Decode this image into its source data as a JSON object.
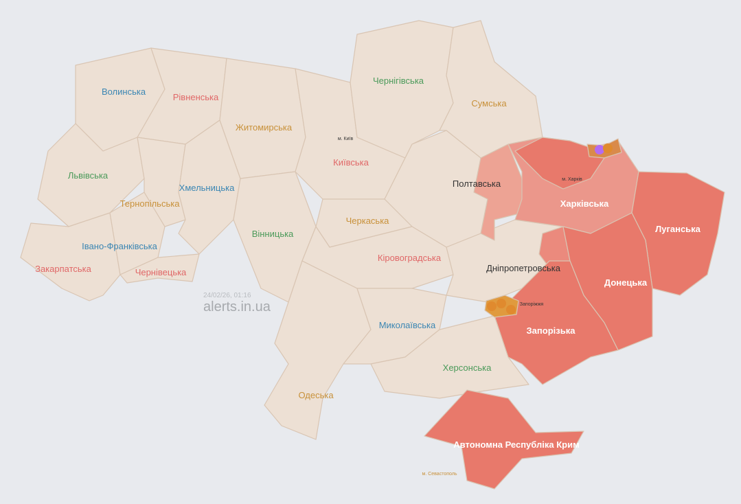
{
  "watermark": {
    "timestamp": "24/02/26, 01:16",
    "site": "alerts.in.ua"
  },
  "colors": {
    "background": "#e8eaee",
    "region_calm": "#ede0d4",
    "region_alert": "#e8796b",
    "region_alert_light": "#eb978b",
    "threat_orange": "#e08a2e",
    "threat_purple": "#b36cf0"
  },
  "regions": [
    {
      "id": "volyn",
      "label": "Волинська",
      "alert": false
    },
    {
      "id": "rivne",
      "label": "Рівненська",
      "alert": false
    },
    {
      "id": "lviv",
      "label": "Львівська",
      "alert": false
    },
    {
      "id": "zakarpattia",
      "label": "Закарпатська",
      "alert": false
    },
    {
      "id": "ivano",
      "label": "Івано-Франківська",
      "alert": false
    },
    {
      "id": "ternopil",
      "label": "Тернопільська",
      "alert": false
    },
    {
      "id": "khmelnytskyi",
      "label": "Хмельницька",
      "alert": false
    },
    {
      "id": "chernivtsi",
      "label": "Чернівецька",
      "alert": false
    },
    {
      "id": "zhytomyr",
      "label": "Житомирська",
      "alert": false
    },
    {
      "id": "vinnytsia",
      "label": "Вінницька",
      "alert": false
    },
    {
      "id": "kyiv",
      "label": "Київська",
      "alert": false
    },
    {
      "id": "chernihiv",
      "label": "Чернігівська",
      "alert": false
    },
    {
      "id": "sumy",
      "label": "Сумська",
      "alert": false
    },
    {
      "id": "poltava",
      "label": "Полтавська",
      "alert": "partial"
    },
    {
      "id": "cherkasy",
      "label": "Черкаська",
      "alert": false
    },
    {
      "id": "kirovohrad",
      "label": "Кіровоградська",
      "alert": false
    },
    {
      "id": "odesa",
      "label": "Одеська",
      "alert": false
    },
    {
      "id": "mykolaiv",
      "label": "Миколаївська",
      "alert": false
    },
    {
      "id": "kherson",
      "label": "Херсонська",
      "alert": false
    },
    {
      "id": "dnipro",
      "label": "Дніпропетровська",
      "alert": "partial"
    },
    {
      "id": "kharkiv",
      "label": "Харківська",
      "alert": true
    },
    {
      "id": "luhansk",
      "label": "Луганська",
      "alert": true
    },
    {
      "id": "donetsk",
      "label": "Донецька",
      "alert": true
    },
    {
      "id": "zaporizhzhia",
      "label": "Запорізька",
      "alert": true
    },
    {
      "id": "crimea",
      "label": "Автономна Республіка Крим",
      "alert": true
    }
  ],
  "cities": {
    "kyiv": "м. Київ",
    "kharkiv": "м. Харків",
    "zaporizhzhia": "Запоріжжя",
    "sevastopol": "м. Севастополь"
  },
  "threat_icons": [
    "drone-icon",
    "artillery-icon",
    "tank-icon"
  ]
}
